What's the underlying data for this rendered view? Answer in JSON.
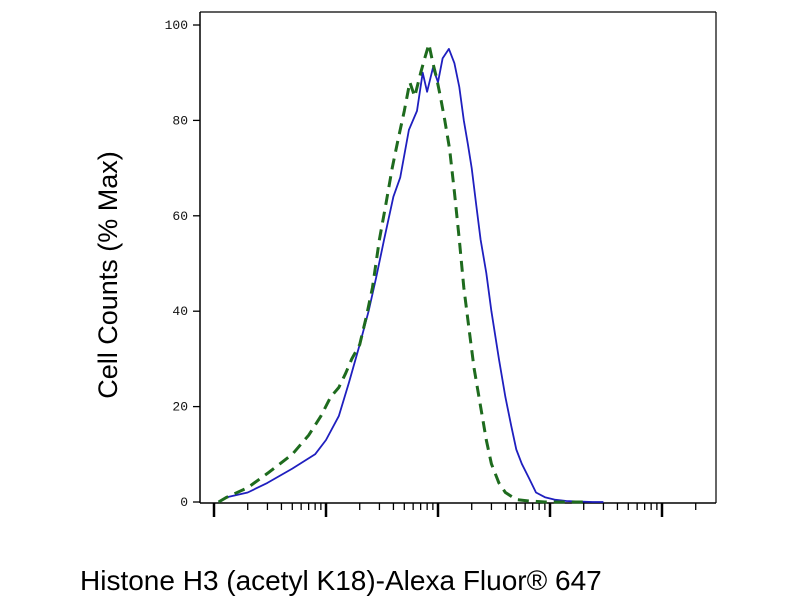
{
  "chart_data": {
    "type": "line",
    "x_scale": "log",
    "xlabel": "Histone H3 (acetyl K18)-Alexa Fluor® 647",
    "ylabel": "Cell Counts (% Max)",
    "ylim": [
      0,
      100
    ],
    "yticks": [
      0,
      20,
      40,
      60,
      80,
      100
    ],
    "xlim": [
      0.1,
      300
    ],
    "x_major_ticks": [
      0.1,
      10
    ],
    "grid": false,
    "series": [
      {
        "style": "solid",
        "color": "#1f1fbf",
        "x": [
          0.11,
          0.13,
          0.2,
          0.3,
          0.5,
          0.8,
          1.0,
          1.3,
          1.6,
          2.0,
          2.4,
          2.8,
          3.3,
          4.0,
          4.6,
          5.5,
          6.5,
          7.3,
          8.0,
          9.0,
          10.0,
          11.0,
          12.5,
          14.0,
          15.5,
          17.0,
          18.5,
          20.0,
          22.0,
          24.0,
          27.0,
          30.0,
          35.0,
          40.0,
          45.0,
          50.0,
          56.0,
          65.0,
          75.0,
          90.0,
          110.0,
          140.0,
          180.0,
          240.0,
          300.0
        ],
        "values": [
          0,
          1,
          2,
          4,
          7,
          10,
          13,
          18,
          25,
          33,
          40,
          47,
          55,
          64,
          68,
          78,
          82,
          90,
          86,
          91,
          88,
          93,
          95,
          92,
          87,
          80,
          75,
          70,
          62,
          55,
          48,
          40,
          30,
          22,
          16,
          11,
          8,
          5,
          2,
          1,
          0.5,
          0.2,
          0.1,
          0,
          0
        ]
      },
      {
        "style": "dashed",
        "color": "#1e6b1e",
        "x": [
          0.11,
          0.13,
          0.2,
          0.3,
          0.5,
          0.7,
          0.9,
          1.1,
          1.3,
          1.5,
          1.7,
          2.0,
          2.3,
          2.6,
          3.0,
          3.4,
          3.9,
          4.4,
          5.0,
          5.6,
          6.2,
          7.0,
          7.6,
          8.3,
          9.0,
          9.7,
          10.5,
          11.5,
          12.7,
          14.0,
          15.5,
          17.0,
          19.0,
          21.0,
          24.0,
          27.0,
          30.0,
          35.0,
          40.0,
          50.0,
          65.0,
          90.0,
          130.0,
          200.0
        ],
        "values": [
          0,
          1,
          3,
          6,
          10,
          14,
          18,
          22,
          24,
          27,
          30,
          33,
          39,
          45,
          55,
          62,
          70,
          76,
          82,
          88,
          85,
          90,
          93,
          96,
          92,
          89,
          85,
          80,
          74,
          65,
          55,
          45,
          36,
          28,
          20,
          13,
          8,
          4,
          2,
          0.5,
          0.2,
          0,
          0,
          0
        ]
      }
    ]
  }
}
